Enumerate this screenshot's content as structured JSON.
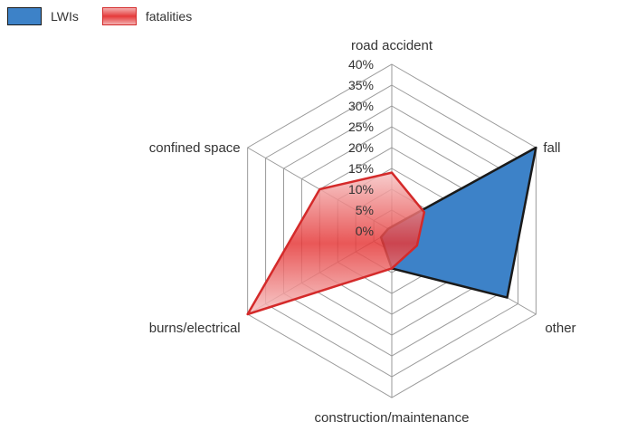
{
  "chart_data": {
    "type": "radar",
    "categories": [
      "road accident",
      "fall",
      "other",
      "construction/maintenance",
      "burns/electrical",
      "confined space"
    ],
    "series": [
      {
        "name": "LWIs",
        "values": [
          1,
          40,
          32,
          9,
          3,
          1
        ],
        "color": "#3d82c8",
        "stroke": "#1a1a1a"
      },
      {
        "name": "fatalities",
        "values": [
          14,
          9,
          7,
          9,
          40,
          20
        ],
        "color": "#e53a3a",
        "stroke": "#d42a2a"
      }
    ],
    "rlim": [
      0,
      40
    ],
    "tick_step": 5,
    "tick_labels": [
      "0%",
      "5%",
      "10%",
      "15%",
      "20%",
      "25%",
      "30%",
      "35%",
      "40%"
    ],
    "grid": true,
    "legend": "top-left"
  }
}
